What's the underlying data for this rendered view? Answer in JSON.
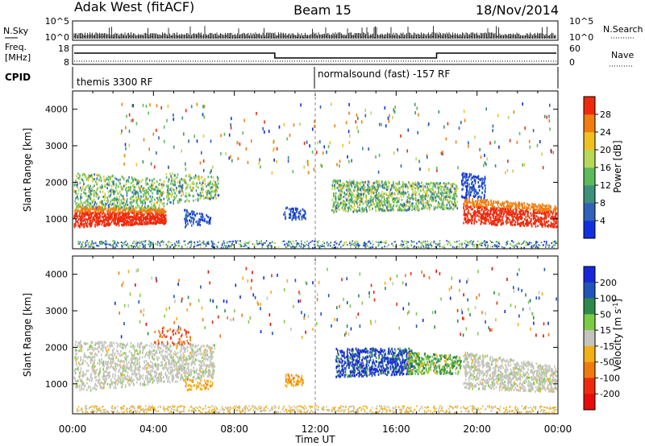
{
  "header": {
    "station": "Adak West (fitACF)",
    "beam": "Beam 15",
    "date": "18/Nov/2014"
  },
  "top_strips": {
    "nsky_label": "N.Sky",
    "nsearch_label": "N.Search",
    "noise_ticks": [
      "10^5",
      "10^0"
    ],
    "freq_label_line1": "Freq.",
    "freq_label_line2": "[MHz]",
    "freq_ticks": [
      "18",
      "8"
    ],
    "nave_label": "Nave",
    "nave_ticks": [
      "60",
      "0"
    ],
    "cpid_label": "CPID",
    "cpid_segments": [
      {
        "name": "themis 3300 RF",
        "start_hour": 0,
        "end_hour": 12
      },
      {
        "name": "normalsound (fast) -157 RF",
        "start_hour": 12,
        "end_hour": 24
      }
    ],
    "frequency_mhz": [
      {
        "start_hour": 0,
        "end_hour": 10.0,
        "value": 15
      },
      {
        "start_hour": 10.0,
        "end_hour": 18.0,
        "value": 13
      },
      {
        "start_hour": 18.0,
        "end_hour": 24,
        "value": 15
      }
    ]
  },
  "chart_data": [
    {
      "type": "heatmap",
      "panel": "power",
      "ylabel": "Slant Range [km]",
      "xlabel": "",
      "xlim_hours": [
        0,
        24
      ],
      "ylim": [
        180,
        4500
      ],
      "x_ticks": [
        "00:00",
        "04:00",
        "08:00",
        "12:00",
        "16:00",
        "20:00",
        "00:00"
      ],
      "y_ticks": [
        1000,
        2000,
        3000,
        4000
      ],
      "colorbar": {
        "label": "Power [dB]",
        "ticks": [
          4,
          8,
          12,
          16,
          20,
          24,
          28
        ],
        "range": [
          0,
          32
        ],
        "colors": [
          "#1030e0",
          "#2f62b8",
          "#3f8f7a",
          "#5cba5c",
          "#b6d95a",
          "#f0c020",
          "#f07d10",
          "#ee2a0c"
        ]
      }
    },
    {
      "type": "heatmap",
      "panel": "velocity",
      "ylabel": "Slant Range [km]",
      "xlabel": "Time UT",
      "xlim_hours": [
        0,
        24
      ],
      "ylim": [
        180,
        4500
      ],
      "x_ticks": [
        "00:00",
        "04:00",
        "08:00",
        "12:00",
        "16:00",
        "20:00",
        "00:00"
      ],
      "y_ticks": [
        1000,
        2000,
        3000,
        4000
      ],
      "colorbar": {
        "label": "Velocity [m s",
        "label_superscript": "-1",
        "label_close": "]",
        "ticks": [
          200,
          100,
          50,
          15,
          -15,
          -50,
          -100,
          -200
        ],
        "colors": [
          "#1828d8",
          "#1f55b8",
          "#2f8a4a",
          "#7bcc45",
          "#c4c4bc",
          "#f2b018",
          "#f07a10",
          "#ee2a0c",
          "#e60c0c"
        ]
      }
    }
  ]
}
